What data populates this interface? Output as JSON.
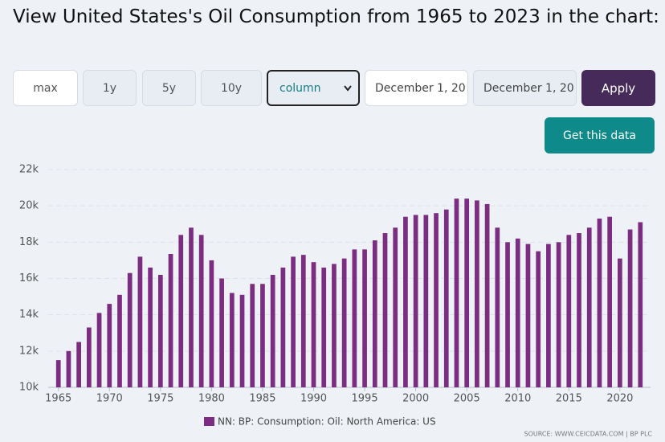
{
  "page": {
    "title": "View United States's Oil Consumption from 1965 to 2023 in the chart:",
    "controls": {
      "ranges": [
        "max",
        "1y",
        "5y",
        "10y"
      ],
      "chart_type": "column",
      "start_date": "December 1, 20",
      "end_date": "December 1, 20",
      "apply": "Apply",
      "get_data": "Get this data"
    }
  },
  "chart_data": {
    "type": "bar",
    "x": [
      1965,
      1966,
      1967,
      1968,
      1969,
      1970,
      1971,
      1972,
      1973,
      1974,
      1975,
      1976,
      1977,
      1978,
      1979,
      1980,
      1981,
      1982,
      1983,
      1984,
      1985,
      1986,
      1987,
      1988,
      1989,
      1990,
      1991,
      1992,
      1993,
      1994,
      1995,
      1996,
      1997,
      1998,
      1999,
      2000,
      2001,
      2002,
      2003,
      2004,
      2005,
      2006,
      2007,
      2008,
      2009,
      2010,
      2011,
      2012,
      2013,
      2014,
      2015,
      2016,
      2017,
      2018,
      2019,
      2020,
      2021,
      2022
    ],
    "series": [
      {
        "name": "NN: BP: Consumption: Oil: North America: US",
        "color": "#7b2d82",
        "values": [
          11500,
          12000,
          12500,
          13300,
          14100,
          14600,
          15100,
          16300,
          17200,
          16600,
          16200,
          17350,
          18400,
          18800,
          18400,
          17000,
          16000,
          15200,
          15100,
          15700,
          15700,
          16200,
          16600,
          17200,
          17300,
          16900,
          16600,
          16800,
          17100,
          17600,
          17600,
          18100,
          18500,
          18800,
          19400,
          19500,
          19500,
          19600,
          19800,
          20400,
          20400,
          20300,
          20100,
          18800,
          18000,
          18200,
          17900,
          17500,
          17900,
          18000,
          18400,
          18500,
          18800,
          19300,
          19400,
          17100,
          18700,
          19100
        ]
      }
    ],
    "xlim": [
      1964,
      2023
    ],
    "xticks": [
      1965,
      1970,
      1975,
      1980,
      1985,
      1990,
      1995,
      2000,
      2005,
      2010,
      2015,
      2020
    ],
    "ylim": [
      10000,
      22000
    ],
    "yticks": [
      {
        "value": 10000,
        "label": "10k"
      },
      {
        "value": 12000,
        "label": "12k"
      },
      {
        "value": 14000,
        "label": "14k"
      },
      {
        "value": 16000,
        "label": "16k"
      },
      {
        "value": 18000,
        "label": "18k"
      },
      {
        "value": 20000,
        "label": "20k"
      },
      {
        "value": 22000,
        "label": "22k"
      }
    ],
    "grid": true,
    "legend": "bottom",
    "source": "SOURCE: WWW.CEICDATA.COM | BP PLC"
  }
}
